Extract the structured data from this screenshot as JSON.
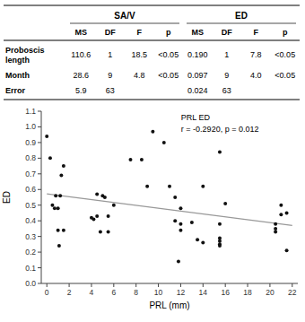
{
  "chart_data": [
    {
      "type": "table",
      "column_groups": [
        "SA/V",
        "ED"
      ],
      "columns": [
        "MS",
        "DF",
        "F",
        "p",
        "MS",
        "DF",
        "F",
        "p"
      ],
      "categories": [
        "Proboscis\nlength",
        "Month",
        "Error"
      ],
      "rows": [
        [
          "110.6",
          "1",
          "18.5",
          "<0.05",
          "0.190",
          "1",
          "7.8",
          "<0.05"
        ],
        [
          "28.6",
          "9",
          "4.8",
          "<0.05",
          "0.097",
          "9",
          "4.0",
          "<0.05"
        ],
        [
          "5.9",
          "63",
          null,
          null,
          "0.024",
          "63",
          null,
          null
        ]
      ]
    },
    {
      "type": "scatter",
      "x": [
        0.0,
        0.3,
        0.5,
        0.7,
        0.8,
        1.0,
        1.0,
        1.1,
        1.2,
        1.3,
        1.5,
        1.5,
        4.0,
        4.2,
        4.5,
        4.5,
        4.8,
        5.0,
        5.2,
        5.5,
        5.5,
        6.0,
        7.5,
        8.5,
        9.0,
        9.5,
        10.5,
        11.0,
        11.5,
        11.5,
        12.0,
        12.0,
        12.0,
        11.8,
        13.0,
        13.5,
        14.0,
        14.0,
        15.5,
        15.5,
        15.5,
        15.5,
        15.5,
        15.5,
        16.0,
        20.5,
        20.5,
        20.5,
        21.0,
        21.0,
        21.5,
        21.5
      ],
      "values": [
        0.94,
        0.8,
        0.5,
        0.48,
        0.56,
        0.48,
        0.34,
        0.24,
        0.56,
        0.69,
        0.75,
        0.34,
        0.42,
        0.41,
        0.57,
        0.43,
        0.33,
        0.56,
        0.55,
        0.33,
        0.43,
        0.5,
        0.79,
        0.79,
        0.62,
        0.97,
        0.9,
        0.62,
        0.55,
        0.4,
        0.48,
        0.38,
        0.34,
        0.14,
        0.39,
        0.28,
        0.62,
        0.26,
        0.84,
        0.38,
        0.29,
        0.27,
        0.25,
        0.24,
        0.51,
        0.38,
        0.35,
        0.33,
        0.5,
        0.44,
        0.45,
        0.21
      ],
      "color": "#111111",
      "regression_line": {
        "x": [
          0,
          22
        ],
        "values": [
          0.57187,
          0.3701
        ],
        "color": "#999999"
      },
      "annotations": [
        "PRL ED",
        "r = -0.2920, p = 0.012"
      ],
      "xlabel": "PRL (mm)",
      "ylabel": "ED",
      "xlim": [
        -0.5,
        22.5
      ],
      "ylim": [
        0.0,
        1.1
      ],
      "xticks": [
        0,
        2,
        4,
        6,
        8,
        10,
        12,
        14,
        16,
        18,
        20,
        22
      ],
      "yticks": [
        {
          "value": 0.0,
          "label": "0.0"
        },
        0.1,
        0.2,
        0.3,
        0.4,
        0.5,
        0.6,
        0.7,
        0.8,
        0.9,
        {
          "value": 1.0,
          "label": "1.0"
        },
        1.1
      ]
    }
  ]
}
